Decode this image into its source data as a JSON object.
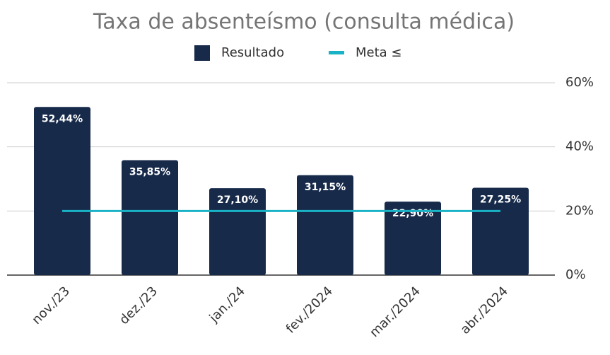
{
  "chart_data": {
    "type": "bar",
    "title": "Taxa de absenteísmo (consulta médica)",
    "categories": [
      "nov./23",
      "dez./23",
      "jan./24",
      "fev./2024",
      "mar./2024",
      "abr./2024"
    ],
    "series": [
      {
        "name": "Resultado",
        "type": "bar",
        "color": "#172a4a",
        "values": [
          52.44,
          35.85,
          27.1,
          31.15,
          22.9,
          27.25
        ],
        "value_labels": [
          "52,44%",
          "35,85%",
          "27,10%",
          "31,15%",
          "22,90%",
          "27,25%"
        ]
      },
      {
        "name": "Meta ≤",
        "type": "line",
        "color": "#1ab3c6",
        "values": [
          20,
          20,
          20,
          20,
          20,
          20
        ]
      }
    ],
    "ylim": [
      0,
      60
    ],
    "yticks": [
      {
        "value": 0,
        "label": "0%"
      },
      {
        "value": 20,
        "label": "20%"
      },
      {
        "value": 40,
        "label": "40%"
      },
      {
        "value": 60,
        "label": "60%"
      }
    ],
    "grid": true,
    "legend": "top"
  }
}
